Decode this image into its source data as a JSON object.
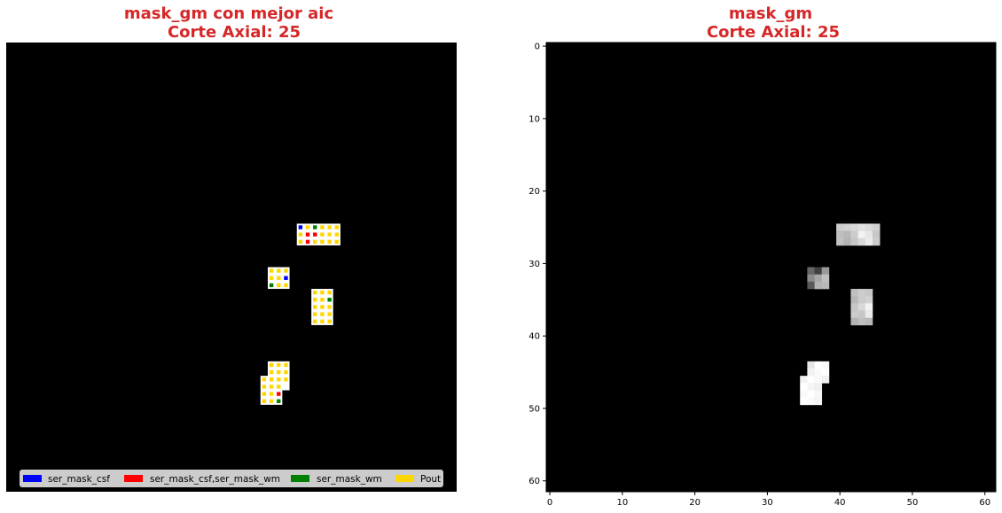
{
  "colors": {
    "title": "#d62728",
    "ser_mask_csf": "#0000ff",
    "ser_mask_csf_wm": "#ff0000",
    "ser_mask_wm": "#008000",
    "Pout": "#ffd700"
  },
  "chart_data": [
    {
      "type": "heatmap",
      "title": "mask_gm con mejor aic",
      "subtitle": "Corte Axial: 25",
      "grid_size": [
        62,
        62
      ],
      "axes_visible": false,
      "legend_placement": "lower-center",
      "legend": [
        {
          "label": "ser_mask_csf",
          "color": "#0000ff"
        },
        {
          "label": "ser_mask_csf,ser_mask_wm",
          "color": "#ff0000"
        },
        {
          "label": "ser_mask_wm",
          "color": "#008000"
        },
        {
          "label": "Pout",
          "color": "#ffd700"
        }
      ],
      "regions": [
        {
          "x": [
            40,
            46
          ],
          "y": [
            25,
            28
          ]
        },
        {
          "x": [
            36,
            39
          ],
          "y": [
            31,
            34
          ]
        },
        {
          "x": [
            42,
            45
          ],
          "y": [
            34,
            39
          ]
        },
        {
          "x": [
            36,
            39
          ],
          "y": [
            44,
            48
          ]
        },
        {
          "x": [
            35,
            38
          ],
          "y": [
            46,
            50
          ]
        }
      ],
      "voxels": [
        {
          "x": 40,
          "y": 25,
          "label": "ser_mask_csf"
        },
        {
          "x": 41,
          "y": 25,
          "label": "Pout"
        },
        {
          "x": 42,
          "y": 25,
          "label": "ser_mask_wm"
        },
        {
          "x": 43,
          "y": 25,
          "label": "Pout"
        },
        {
          "x": 44,
          "y": 25,
          "label": "Pout"
        },
        {
          "x": 45,
          "y": 25,
          "label": "Pout"
        },
        {
          "x": 40,
          "y": 26,
          "label": "Pout"
        },
        {
          "x": 41,
          "y": 26,
          "label": "ser_mask_csf,ser_mask_wm"
        },
        {
          "x": 42,
          "y": 26,
          "label": "ser_mask_csf,ser_mask_wm"
        },
        {
          "x": 43,
          "y": 26,
          "label": "Pout"
        },
        {
          "x": 44,
          "y": 26,
          "label": "Pout"
        },
        {
          "x": 45,
          "y": 26,
          "label": "Pout"
        },
        {
          "x": 40,
          "y": 27,
          "label": "Pout"
        },
        {
          "x": 41,
          "y": 27,
          "label": "ser_mask_csf,ser_mask_wm"
        },
        {
          "x": 42,
          "y": 27,
          "label": "Pout"
        },
        {
          "x": 43,
          "y": 27,
          "label": "Pout"
        },
        {
          "x": 44,
          "y": 27,
          "label": "Pout"
        },
        {
          "x": 45,
          "y": 27,
          "label": "Pout"
        },
        {
          "x": 36,
          "y": 31,
          "label": "Pout"
        },
        {
          "x": 37,
          "y": 31,
          "label": "Pout"
        },
        {
          "x": 38,
          "y": 31,
          "label": "Pout"
        },
        {
          "x": 36,
          "y": 32,
          "label": "Pout"
        },
        {
          "x": 37,
          "y": 32,
          "label": "Pout"
        },
        {
          "x": 38,
          "y": 32,
          "label": "ser_mask_csf"
        },
        {
          "x": 36,
          "y": 33,
          "label": "ser_mask_wm"
        },
        {
          "x": 37,
          "y": 33,
          "label": "Pout"
        },
        {
          "x": 38,
          "y": 33,
          "label": "Pout"
        },
        {
          "x": 42,
          "y": 34,
          "label": "Pout"
        },
        {
          "x": 43,
          "y": 34,
          "label": "Pout"
        },
        {
          "x": 44,
          "y": 34,
          "label": "Pout"
        },
        {
          "x": 42,
          "y": 35,
          "label": "Pout"
        },
        {
          "x": 43,
          "y": 35,
          "label": "Pout"
        },
        {
          "x": 44,
          "y": 35,
          "label": "ser_mask_wm"
        },
        {
          "x": 42,
          "y": 36,
          "label": "Pout"
        },
        {
          "x": 43,
          "y": 36,
          "label": "Pout"
        },
        {
          "x": 44,
          "y": 36,
          "label": "Pout"
        },
        {
          "x": 42,
          "y": 37,
          "label": "Pout"
        },
        {
          "x": 43,
          "y": 37,
          "label": "Pout"
        },
        {
          "x": 44,
          "y": 37,
          "label": "Pout"
        },
        {
          "x": 42,
          "y": 38,
          "label": "Pout"
        },
        {
          "x": 43,
          "y": 38,
          "label": "Pout"
        },
        {
          "x": 44,
          "y": 38,
          "label": "Pout"
        },
        {
          "x": 36,
          "y": 44,
          "label": "Pout"
        },
        {
          "x": 37,
          "y": 44,
          "label": "Pout"
        },
        {
          "x": 38,
          "y": 44,
          "label": "Pout"
        },
        {
          "x": 36,
          "y": 45,
          "label": "Pout"
        },
        {
          "x": 37,
          "y": 45,
          "label": "Pout"
        },
        {
          "x": 38,
          "y": 45,
          "label": "Pout"
        },
        {
          "x": 35,
          "y": 46,
          "label": "Pout"
        },
        {
          "x": 36,
          "y": 46,
          "label": "Pout"
        },
        {
          "x": 37,
          "y": 46,
          "label": "Pout"
        },
        {
          "x": 38,
          "y": 46,
          "label": "Pout"
        },
        {
          "x": 35,
          "y": 47,
          "label": "Pout"
        },
        {
          "x": 36,
          "y": 47,
          "label": "Pout"
        },
        {
          "x": 37,
          "y": 47,
          "label": "Pout"
        },
        {
          "x": 35,
          "y": 48,
          "label": "Pout"
        },
        {
          "x": 36,
          "y": 48,
          "label": "Pout"
        },
        {
          "x": 37,
          "y": 48,
          "label": "ser_mask_csf,ser_mask_wm"
        },
        {
          "x": 35,
          "y": 49,
          "label": "Pout"
        },
        {
          "x": 36,
          "y": 49,
          "label": "Pout"
        },
        {
          "x": 37,
          "y": 49,
          "label": "ser_mask_wm"
        }
      ]
    },
    {
      "type": "heatmap",
      "title": "mask_gm",
      "subtitle": "Corte Axial: 25",
      "grid_size": [
        62,
        62
      ],
      "xlim": [
        -0.5,
        61.5
      ],
      "ylim": [
        61.5,
        -0.5
      ],
      "xticks": [
        0,
        10,
        20,
        30,
        40,
        50,
        60
      ],
      "yticks": [
        0,
        10,
        20,
        30,
        40,
        50,
        60
      ],
      "colormap": "gray",
      "cells": [
        {
          "x": 40,
          "y": 25,
          "v": 0.8
        },
        {
          "x": 41,
          "y": 25,
          "v": 0.82
        },
        {
          "x": 42,
          "y": 25,
          "v": 0.85
        },
        {
          "x": 43,
          "y": 25,
          "v": 0.88
        },
        {
          "x": 44,
          "y": 25,
          "v": 0.86
        },
        {
          "x": 45,
          "y": 25,
          "v": 0.82
        },
        {
          "x": 40,
          "y": 26,
          "v": 0.75
        },
        {
          "x": 41,
          "y": 26,
          "v": 0.72
        },
        {
          "x": 42,
          "y": 26,
          "v": 0.8
        },
        {
          "x": 43,
          "y": 26,
          "v": 0.95
        },
        {
          "x": 44,
          "y": 26,
          "v": 0.9
        },
        {
          "x": 45,
          "y": 26,
          "v": 0.78
        },
        {
          "x": 40,
          "y": 27,
          "v": 0.76
        },
        {
          "x": 41,
          "y": 27,
          "v": 0.7
        },
        {
          "x": 42,
          "y": 27,
          "v": 0.78
        },
        {
          "x": 43,
          "y": 27,
          "v": 0.85
        },
        {
          "x": 44,
          "y": 27,
          "v": 0.92
        },
        {
          "x": 45,
          "y": 27,
          "v": 0.8
        },
        {
          "x": 36,
          "y": 31,
          "v": 0.4
        },
        {
          "x": 37,
          "y": 31,
          "v": 0.25
        },
        {
          "x": 38,
          "y": 31,
          "v": 0.6
        },
        {
          "x": 36,
          "y": 32,
          "v": 0.55
        },
        {
          "x": 37,
          "y": 32,
          "v": 0.65
        },
        {
          "x": 38,
          "y": 32,
          "v": 0.75
        },
        {
          "x": 36,
          "y": 33,
          "v": 0.35
        },
        {
          "x": 37,
          "y": 33,
          "v": 0.7
        },
        {
          "x": 38,
          "y": 33,
          "v": 0.72
        },
        {
          "x": 42,
          "y": 34,
          "v": 0.75
        },
        {
          "x": 43,
          "y": 34,
          "v": 0.8
        },
        {
          "x": 44,
          "y": 34,
          "v": 0.78
        },
        {
          "x": 42,
          "y": 35,
          "v": 0.72
        },
        {
          "x": 43,
          "y": 35,
          "v": 0.8
        },
        {
          "x": 44,
          "y": 35,
          "v": 0.82
        },
        {
          "x": 42,
          "y": 36,
          "v": 0.78
        },
        {
          "x": 43,
          "y": 36,
          "v": 0.85
        },
        {
          "x": 44,
          "y": 36,
          "v": 0.95
        },
        {
          "x": 42,
          "y": 37,
          "v": 0.8
        },
        {
          "x": 43,
          "y": 37,
          "v": 0.78
        },
        {
          "x": 44,
          "y": 37,
          "v": 0.92
        },
        {
          "x": 42,
          "y": 38,
          "v": 0.7
        },
        {
          "x": 43,
          "y": 38,
          "v": 0.75
        },
        {
          "x": 44,
          "y": 38,
          "v": 0.72
        },
        {
          "x": 36,
          "y": 44,
          "v": 0.9
        },
        {
          "x": 37,
          "y": 44,
          "v": 1.0
        },
        {
          "x": 38,
          "y": 44,
          "v": 0.98
        },
        {
          "x": 36,
          "y": 45,
          "v": 0.95
        },
        {
          "x": 37,
          "y": 45,
          "v": 0.98
        },
        {
          "x": 38,
          "y": 45,
          "v": 1.0
        },
        {
          "x": 35,
          "y": 46,
          "v": 0.95
        },
        {
          "x": 36,
          "y": 46,
          "v": 1.0
        },
        {
          "x": 37,
          "y": 46,
          "v": 0.98
        },
        {
          "x": 38,
          "y": 46,
          "v": 0.95
        },
        {
          "x": 35,
          "y": 47,
          "v": 1.0
        },
        {
          "x": 36,
          "y": 47,
          "v": 0.96
        },
        {
          "x": 37,
          "y": 47,
          "v": 0.94
        },
        {
          "x": 35,
          "y": 48,
          "v": 0.98
        },
        {
          "x": 36,
          "y": 48,
          "v": 1.0
        },
        {
          "x": 37,
          "y": 48,
          "v": 0.97
        },
        {
          "x": 35,
          "y": 49,
          "v": 1.0
        },
        {
          "x": 36,
          "y": 49,
          "v": 0.98
        },
        {
          "x": 37,
          "y": 49,
          "v": 0.96
        }
      ]
    }
  ]
}
